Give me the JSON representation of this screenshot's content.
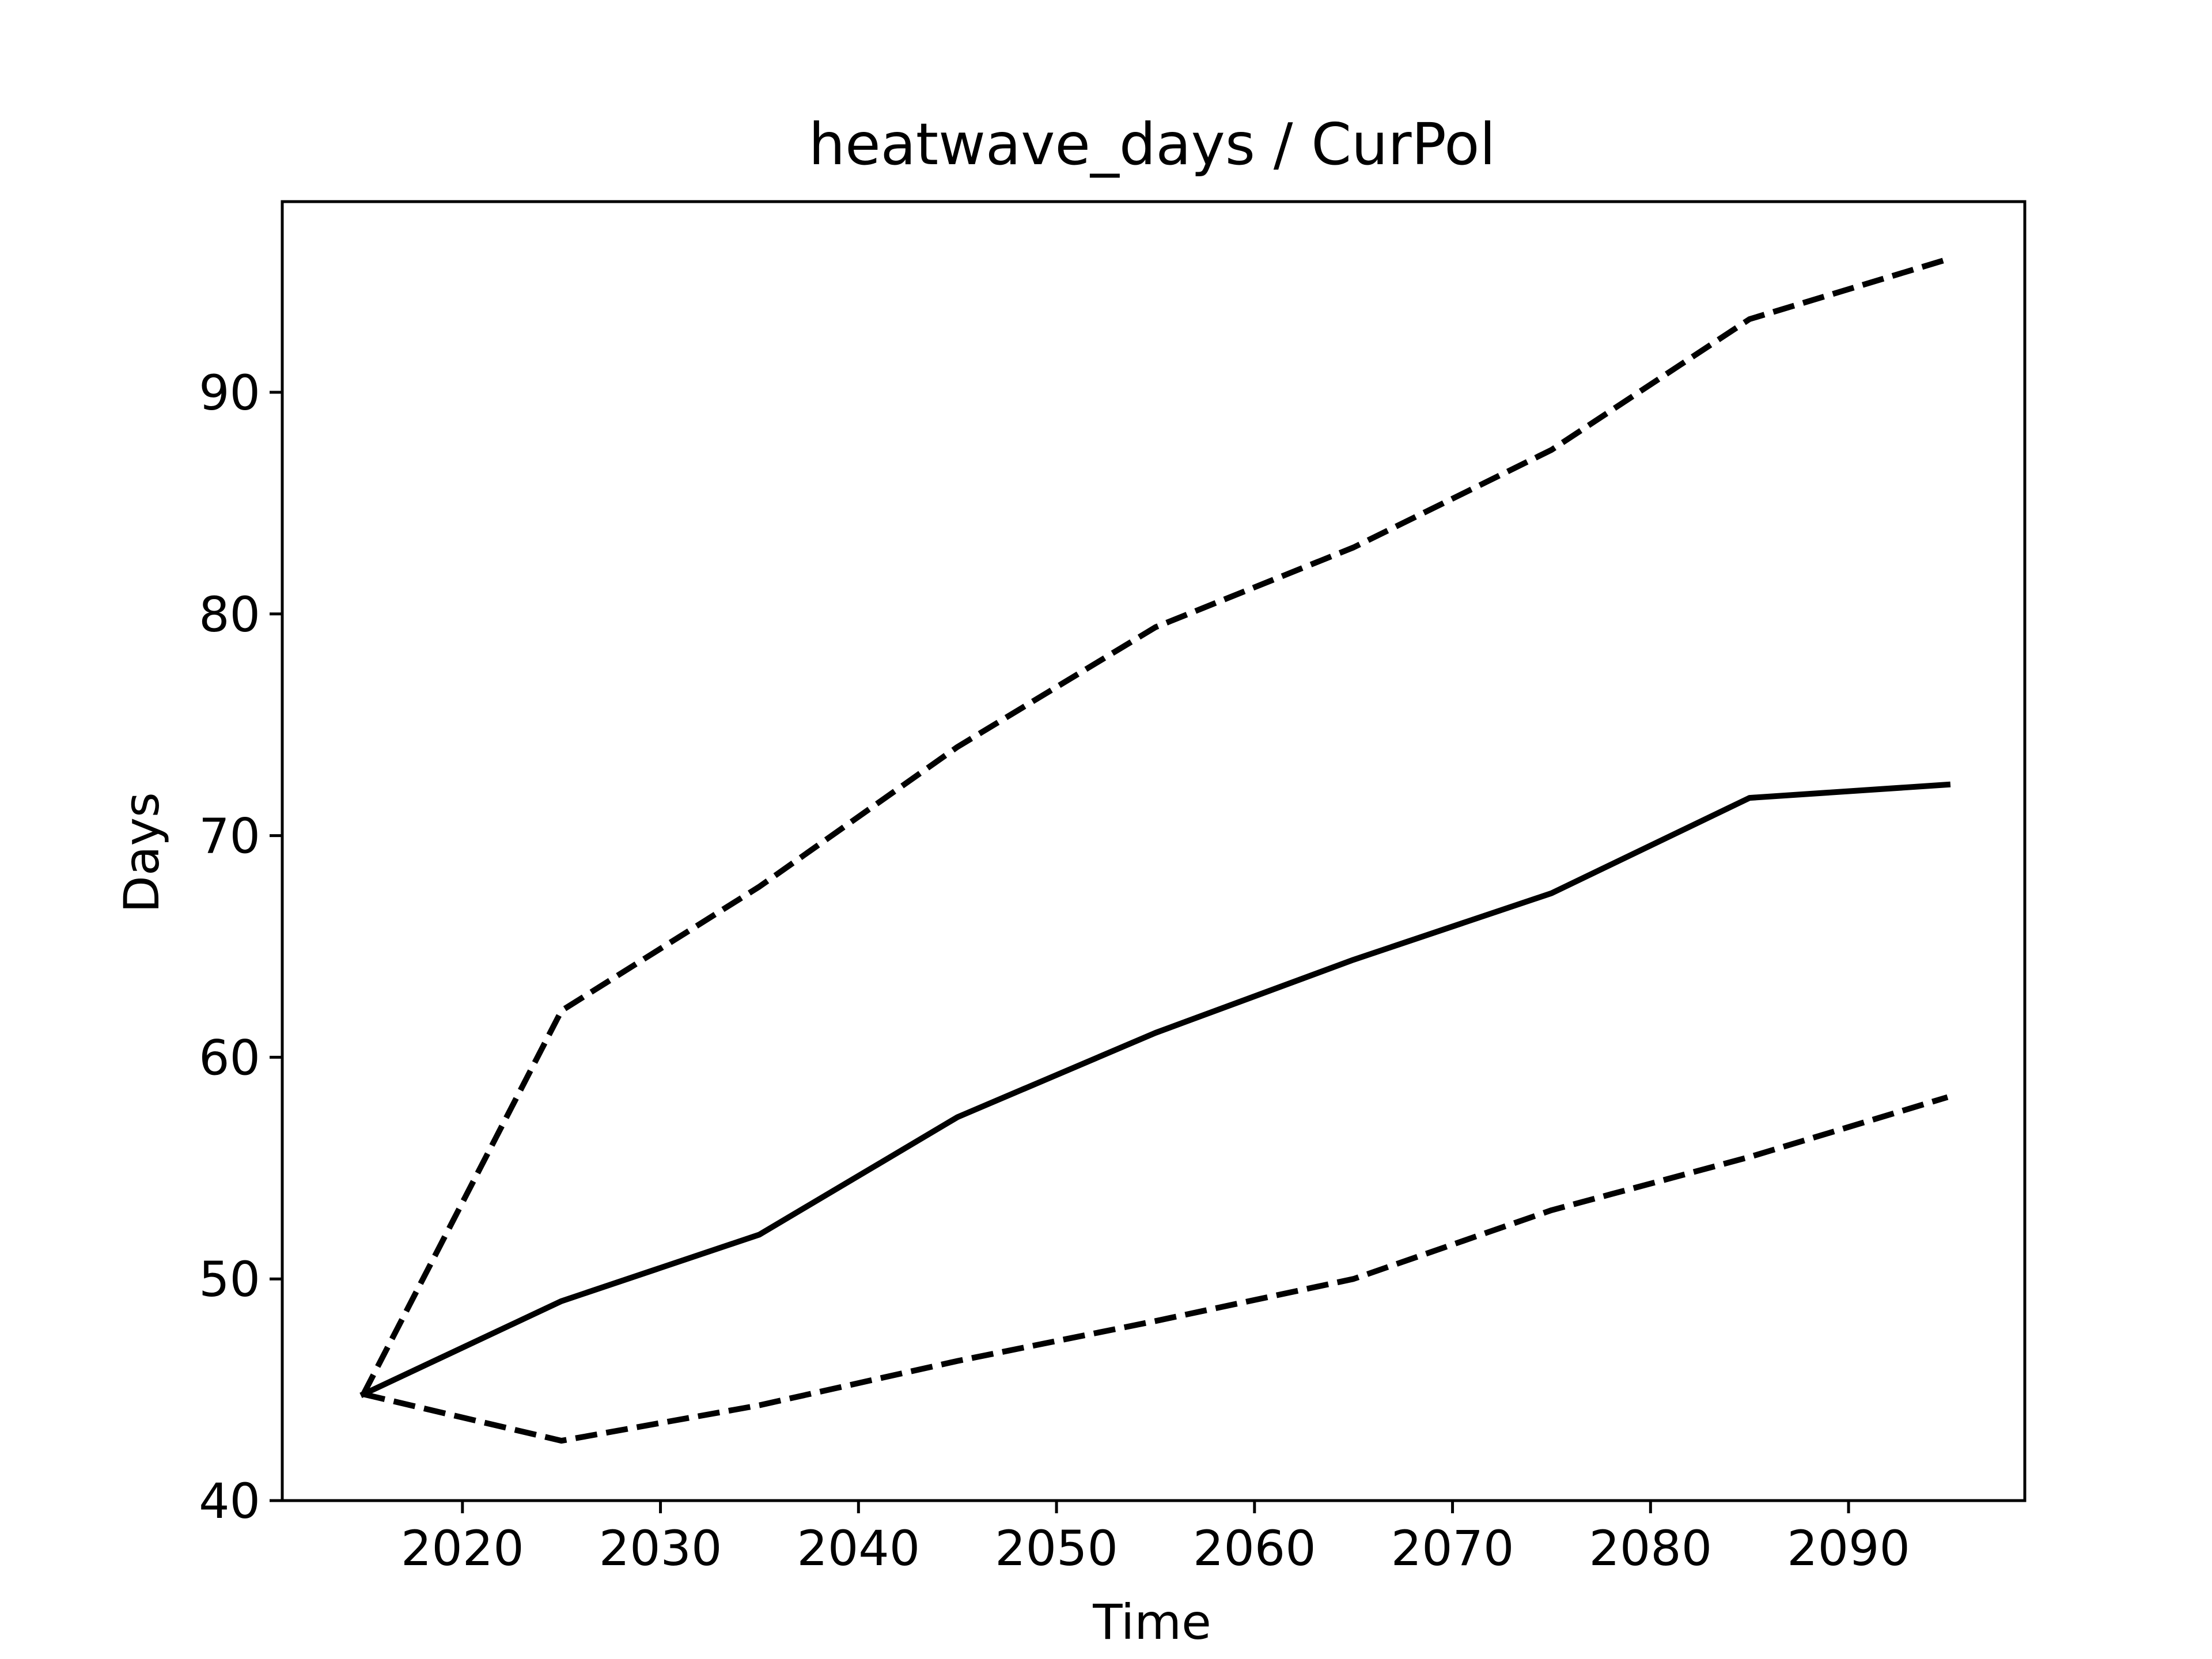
{
  "chart_data": {
    "type": "line",
    "title": "heatwave_days / CurPol",
    "xlabel": "Time",
    "ylabel": "Days",
    "xlim": [
      2010.9,
      2098.9
    ],
    "ylim": [
      40,
      98.6
    ],
    "xticks": [
      2020,
      2030,
      2040,
      2050,
      2060,
      2070,
      2080,
      2090
    ],
    "yticks": [
      40,
      50,
      60,
      70,
      80,
      90
    ],
    "grid": false,
    "legend": "none",
    "line_color": "#000000",
    "x": [
      2015,
      2025,
      2035,
      2045,
      2055,
      2065,
      2075,
      2085,
      2095
    ],
    "series": [
      {
        "style": "dashed",
        "values": [
          44.8,
          62.1,
          67.7,
          74.0,
          79.4,
          83.0,
          87.4,
          93.3,
          96.0
        ]
      },
      {
        "style": "solid",
        "values": [
          44.8,
          49.0,
          52.0,
          57.3,
          61.1,
          64.4,
          67.4,
          71.7,
          72.3
        ]
      },
      {
        "style": "dashed",
        "values": [
          44.8,
          42.7,
          44.3,
          46.3,
          48.1,
          50.0,
          53.1,
          55.5,
          58.2
        ]
      }
    ]
  }
}
